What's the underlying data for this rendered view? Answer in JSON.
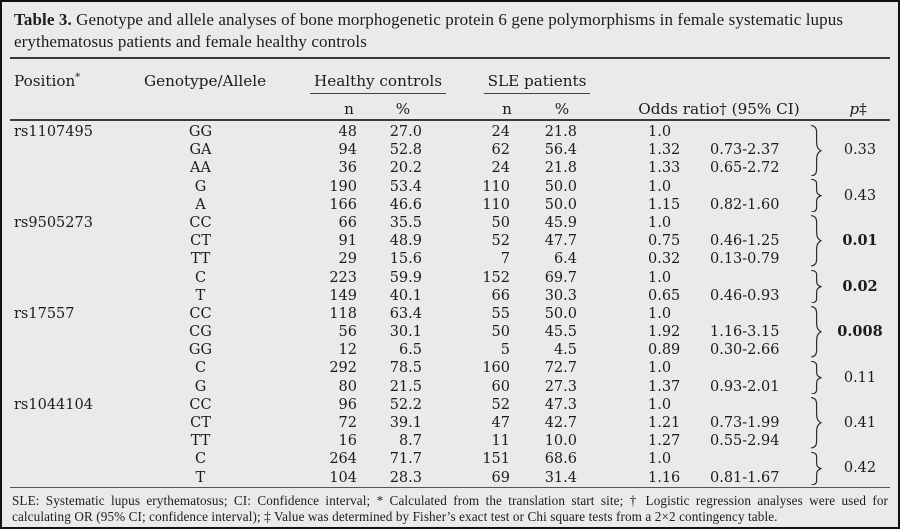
{
  "title": {
    "label": "Table 3.",
    "text": "Genotype and allele analyses of bone morphogenetic protein 6 gene polymorphisms in female systematic lupus erythematosus patients and female healthy controls"
  },
  "header": {
    "position": "Position",
    "position_mark": "*",
    "genotype": "Genotype/Allele",
    "healthy_controls": "Healthy controls",
    "sle_patients": "SLE patients",
    "n": "n",
    "pct": "%",
    "odds_ratio": "Odds ratio† (95% CI)",
    "p": "p",
    "p_mark": "‡"
  },
  "groups": [
    {
      "position": "rs1107495",
      "subgroups": [
        {
          "p": "0.33",
          "bold": false,
          "rows": [
            {
              "genotype": "GG",
              "hc_n": "48",
              "hc_pct": "27.0",
              "sle_n": "24",
              "sle_pct": "21.8",
              "or": "1.0",
              "ci": ""
            },
            {
              "genotype": "GA",
              "hc_n": "94",
              "hc_pct": "52.8",
              "sle_n": "62",
              "sle_pct": "56.4",
              "or": "1.32",
              "ci": "0.73-2.37"
            },
            {
              "genotype": "AA",
              "hc_n": "36",
              "hc_pct": "20.2",
              "sle_n": "24",
              "sle_pct": "21.8",
              "or": "1.33",
              "ci": "0.65-2.72"
            }
          ]
        },
        {
          "p": "0.43",
          "bold": false,
          "rows": [
            {
              "genotype": "G",
              "hc_n": "190",
              "hc_pct": "53.4",
              "sle_n": "110",
              "sle_pct": "50.0",
              "or": "1.0",
              "ci": ""
            },
            {
              "genotype": "A",
              "hc_n": "166",
              "hc_pct": "46.6",
              "sle_n": "110",
              "sle_pct": "50.0",
              "or": "1.15",
              "ci": "0.82-1.60"
            }
          ]
        }
      ]
    },
    {
      "position": "rs9505273",
      "subgroups": [
        {
          "p": "0.01",
          "bold": true,
          "rows": [
            {
              "genotype": "CC",
              "hc_n": "66",
              "hc_pct": "35.5",
              "sle_n": "50",
              "sle_pct": "45.9",
              "or": "1.0",
              "ci": ""
            },
            {
              "genotype": "CT",
              "hc_n": "91",
              "hc_pct": "48.9",
              "sle_n": "52",
              "sle_pct": "47.7",
              "or": "0.75",
              "ci": "0.46-1.25"
            },
            {
              "genotype": "TT",
              "hc_n": "29",
              "hc_pct": "15.6",
              "sle_n": "7",
              "sle_pct": "6.4",
              "or": "0.32",
              "ci": "0.13-0.79"
            }
          ]
        },
        {
          "p": "0.02",
          "bold": true,
          "rows": [
            {
              "genotype": "C",
              "hc_n": "223",
              "hc_pct": "59.9",
              "sle_n": "152",
              "sle_pct": "69.7",
              "or": "1.0",
              "ci": ""
            },
            {
              "genotype": "T",
              "hc_n": "149",
              "hc_pct": "40.1",
              "sle_n": "66",
              "sle_pct": "30.3",
              "or": "0.65",
              "ci": "0.46-0.93"
            }
          ]
        }
      ]
    },
    {
      "position": "rs17557",
      "subgroups": [
        {
          "p": "0.008",
          "bold": true,
          "rows": [
            {
              "genotype": "CC",
              "hc_n": "118",
              "hc_pct": "63.4",
              "sle_n": "55",
              "sle_pct": "50.0",
              "or": "1.0",
              "ci": ""
            },
            {
              "genotype": "CG",
              "hc_n": "56",
              "hc_pct": "30.1",
              "sle_n": "50",
              "sle_pct": "45.5",
              "or": "1.92",
              "ci": "1.16-3.15"
            },
            {
              "genotype": "GG",
              "hc_n": "12",
              "hc_pct": "6.5",
              "sle_n": "5",
              "sle_pct": "4.5",
              "or": "0.89",
              "ci": "0.30-2.66"
            }
          ]
        },
        {
          "p": "0.11",
          "bold": false,
          "rows": [
            {
              "genotype": "C",
              "hc_n": "292",
              "hc_pct": "78.5",
              "sle_n": "160",
              "sle_pct": "72.7",
              "or": "1.0",
              "ci": ""
            },
            {
              "genotype": "G",
              "hc_n": "80",
              "hc_pct": "21.5",
              "sle_n": "60",
              "sle_pct": "27.3",
              "or": "1.37",
              "ci": "0.93-2.01"
            }
          ]
        }
      ]
    },
    {
      "position": "rs1044104",
      "subgroups": [
        {
          "p": "0.41",
          "bold": false,
          "rows": [
            {
              "genotype": "CC",
              "hc_n": "96",
              "hc_pct": "52.2",
              "sle_n": "52",
              "sle_pct": "47.3",
              "or": "1.0",
              "ci": ""
            },
            {
              "genotype": "CT",
              "hc_n": "72",
              "hc_pct": "39.1",
              "sle_n": "47",
              "sle_pct": "42.7",
              "or": "1.21",
              "ci": "0.73-1.99"
            },
            {
              "genotype": "TT",
              "hc_n": "16",
              "hc_pct": "8.7",
              "sle_n": "11",
              "sle_pct": "10.0",
              "or": "1.27",
              "ci": "0.55-2.94"
            }
          ]
        },
        {
          "p": "0.42",
          "bold": false,
          "rows": [
            {
              "genotype": "C",
              "hc_n": "264",
              "hc_pct": "71.7",
              "sle_n": "151",
              "sle_pct": "68.6",
              "or": "1.0",
              "ci": ""
            },
            {
              "genotype": "T",
              "hc_n": "104",
              "hc_pct": "28.3",
              "sle_n": "69",
              "sle_pct": "31.4",
              "or": "1.16",
              "ci": "0.81-1.67"
            }
          ]
        }
      ]
    }
  ],
  "footnote": "SLE: Systematic lupus erythematosus; CI: Confidence interval; * Calculated from the translation start site; † Logistic regression analyses were used for calculating OR (95% CI; confidence interval); ‡ Value was determined by Fisher’s exact test or Chi square tests from a 2×2 contingency table."
}
